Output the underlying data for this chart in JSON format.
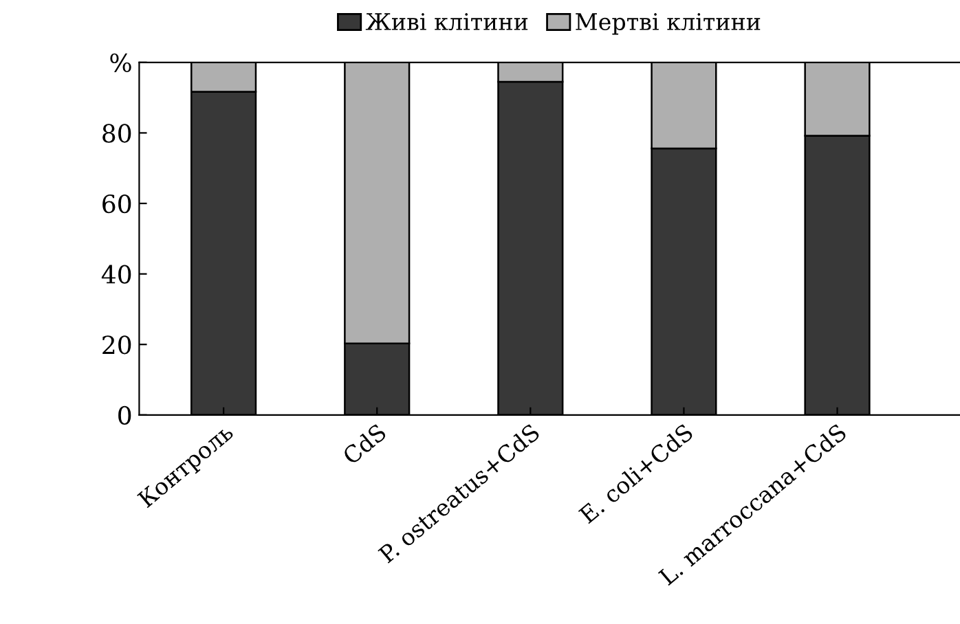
{
  "chart_data": {
    "type": "bar",
    "stacked": true,
    "categories": [
      "Контроль",
      "CdS",
      "P. ostreatus+CdS",
      "E. coli+CdS",
      "L. marroccana+CdS"
    ],
    "series": [
      {
        "name": "Живі клітини",
        "color": "#383838",
        "values": [
          91.7,
          20.3,
          94.5,
          75.6,
          79.2
        ]
      },
      {
        "name": "Мертві клітини",
        "color": "#afafaf",
        "values": [
          8.3,
          79.7,
          5.5,
          24.4,
          20.8
        ]
      }
    ],
    "ylim": [
      0,
      100
    ],
    "yticks": [
      0,
      20,
      40,
      60,
      80,
      {
        "value": 100,
        "label": "%"
      }
    ],
    "legend": "top",
    "grid": false
  }
}
